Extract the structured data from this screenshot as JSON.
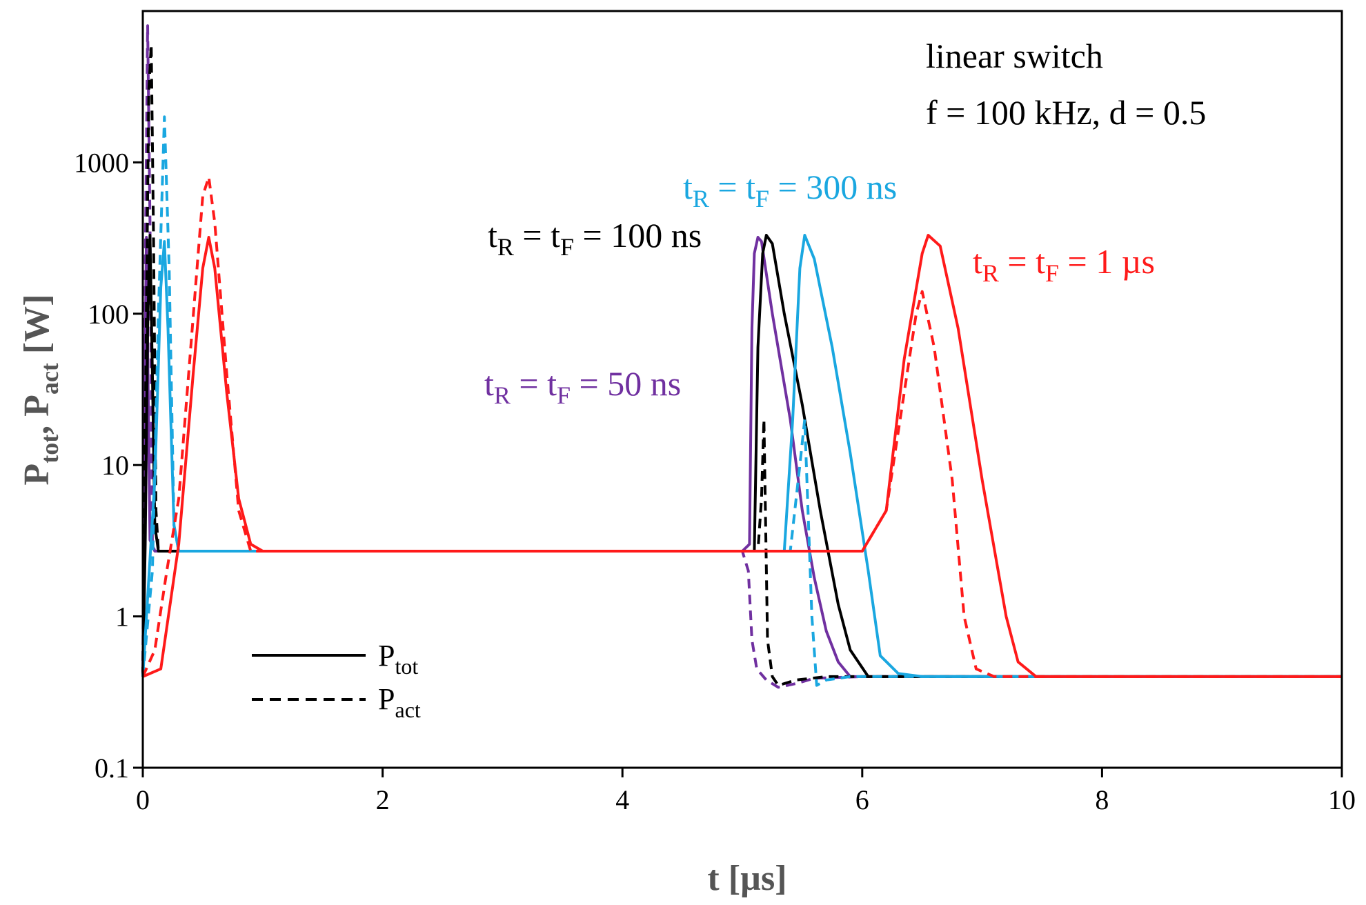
{
  "chart_data": {
    "type": "line",
    "xlabel": {
      "main": "t [µs]"
    },
    "ylabel": {
      "p1": "P",
      "p1_sub": "tot",
      "sep": ", ",
      "p2": "P",
      "p2_sub": "act",
      "unit": " [W]"
    },
    "xlim": [
      0,
      10
    ],
    "ylim": [
      0.1,
      10000
    ],
    "yscale": "log",
    "x_ticks": [
      "0",
      "2",
      "4",
      "6",
      "8",
      "10"
    ],
    "y_ticks": [
      "0.1",
      "1",
      "10",
      "100",
      "1000"
    ],
    "grid": false,
    "note": {
      "line1": "linear switch",
      "line2": "f = 100 kHz, d = 0.5"
    },
    "annotations": [
      {
        "t": "t",
        "s1": "R",
        "mid": " = t",
        "s2": "F",
        "rest": " = 300 ns",
        "color": "#1aa7e0"
      },
      {
        "t": "t",
        "s1": "R",
        "mid": " = t",
        "s2": "F",
        "rest": " = 100 ns",
        "color": "#000000"
      },
      {
        "t": "t",
        "s1": "R",
        "mid": " = t",
        "s2": "F",
        "rest": " = 1 µs",
        "color": "#ff1a1a"
      },
      {
        "t": "t",
        "s1": "R",
        "mid": " = t",
        "s2": "F",
        "rest": " = 50 ns",
        "color": "#7030a0"
      }
    ],
    "legend": {
      "position": "bottom-left",
      "entries": [
        {
          "main": "P",
          "sub": "tot",
          "dash": "solid"
        },
        {
          "main": "P",
          "sub": "act",
          "dash": "dashed"
        }
      ]
    },
    "series": [
      {
        "color": "#7030a0",
        "dash": "solid",
        "points": [
          [
            0,
            0.4
          ],
          [
            0.01,
            2
          ],
          [
            0.02,
            60
          ],
          [
            0.03,
            320
          ],
          [
            0.045,
            30
          ],
          [
            0.06,
            3.2
          ],
          [
            0.1,
            2.7
          ],
          [
            5.0,
            2.7
          ],
          [
            5.06,
            3
          ],
          [
            5.08,
            80
          ],
          [
            5.1,
            250
          ],
          [
            5.13,
            320
          ],
          [
            5.16,
            300
          ],
          [
            5.25,
            100
          ],
          [
            5.4,
            20
          ],
          [
            5.5,
            5
          ],
          [
            5.6,
            1.8
          ],
          [
            5.7,
            0.8
          ],
          [
            5.8,
            0.5
          ],
          [
            5.9,
            0.4
          ],
          [
            10,
            0.4
          ]
        ]
      },
      {
        "color": "#7030a0",
        "dash": "dashed",
        "points": [
          [
            0,
            0.4
          ],
          [
            0.02,
            200
          ],
          [
            0.04,
            8000
          ],
          [
            0.06,
            400
          ],
          [
            0.08,
            3
          ],
          [
            0.1,
            2.7
          ],
          [
            5.0,
            2.7
          ],
          [
            5.05,
            2
          ],
          [
            5.08,
            0.7
          ],
          [
            5.12,
            0.45
          ],
          [
            5.2,
            0.38
          ],
          [
            5.3,
            0.34
          ],
          [
            5.45,
            0.36
          ],
          [
            5.6,
            0.39
          ],
          [
            6.0,
            0.4
          ],
          [
            10,
            0.4
          ]
        ]
      },
      {
        "color": "#000000",
        "dash": "solid",
        "points": [
          [
            0,
            0.4
          ],
          [
            0.02,
            3
          ],
          [
            0.04,
            80
          ],
          [
            0.06,
            330
          ],
          [
            0.08,
            40
          ],
          [
            0.1,
            4
          ],
          [
            0.13,
            2.7
          ],
          [
            5.0,
            2.7
          ],
          [
            5.1,
            2.7
          ],
          [
            5.13,
            60
          ],
          [
            5.17,
            250
          ],
          [
            5.2,
            330
          ],
          [
            5.25,
            290
          ],
          [
            5.35,
            100
          ],
          [
            5.5,
            25
          ],
          [
            5.65,
            5
          ],
          [
            5.8,
            1.2
          ],
          [
            5.9,
            0.6
          ],
          [
            6.05,
            0.4
          ],
          [
            10,
            0.4
          ]
        ]
      },
      {
        "color": "#000000",
        "dash": "dashed",
        "points": [
          [
            0,
            0.4
          ],
          [
            0.03,
            100
          ],
          [
            0.05,
            3000
          ],
          [
            0.07,
            6000
          ],
          [
            0.09,
            300
          ],
          [
            0.11,
            5
          ],
          [
            0.13,
            2.7
          ],
          [
            5.0,
            2.7
          ],
          [
            5.13,
            2.7
          ],
          [
            5.16,
            6
          ],
          [
            5.18,
            20
          ],
          [
            5.21,
            0.7
          ],
          [
            5.25,
            0.4
          ],
          [
            5.3,
            0.35
          ],
          [
            5.45,
            0.38
          ],
          [
            5.7,
            0.4
          ],
          [
            10,
            0.4
          ]
        ]
      },
      {
        "color": "#1aa7e0",
        "dash": "solid",
        "points": [
          [
            0,
            0.4
          ],
          [
            0.1,
            8
          ],
          [
            0.15,
            150
          ],
          [
            0.18,
            300
          ],
          [
            0.21,
            80
          ],
          [
            0.26,
            4
          ],
          [
            0.3,
            2.7
          ],
          [
            5.0,
            2.7
          ],
          [
            5.35,
            2.7
          ],
          [
            5.42,
            20
          ],
          [
            5.48,
            200
          ],
          [
            5.52,
            330
          ],
          [
            5.6,
            230
          ],
          [
            5.75,
            60
          ],
          [
            5.9,
            12
          ],
          [
            6.05,
            2
          ],
          [
            6.15,
            0.55
          ],
          [
            6.3,
            0.42
          ],
          [
            6.5,
            0.4
          ],
          [
            10,
            0.4
          ]
        ]
      },
      {
        "color": "#1aa7e0",
        "dash": "dashed",
        "points": [
          [
            0,
            0.4
          ],
          [
            0.08,
            2
          ],
          [
            0.13,
            100
          ],
          [
            0.18,
            2000
          ],
          [
            0.22,
            200
          ],
          [
            0.26,
            4
          ],
          [
            0.3,
            2.7
          ],
          [
            5.0,
            2.7
          ],
          [
            5.4,
            2.7
          ],
          [
            5.48,
            10
          ],
          [
            5.52,
            20
          ],
          [
            5.58,
            1
          ],
          [
            5.62,
            0.35
          ],
          [
            5.7,
            0.38
          ],
          [
            5.9,
            0.4
          ],
          [
            10,
            0.4
          ]
        ]
      },
      {
        "color": "#ff1a1a",
        "dash": "solid",
        "points": [
          [
            0,
            0.4
          ],
          [
            0.15,
            0.45
          ],
          [
            0.3,
            3
          ],
          [
            0.42,
            40
          ],
          [
            0.5,
            200
          ],
          [
            0.55,
            320
          ],
          [
            0.6,
            200
          ],
          [
            0.7,
            30
          ],
          [
            0.8,
            6
          ],
          [
            0.9,
            3
          ],
          [
            1.0,
            2.7
          ],
          [
            6.0,
            2.7
          ],
          [
            6.2,
            5
          ],
          [
            6.35,
            50
          ],
          [
            6.5,
            250
          ],
          [
            6.55,
            330
          ],
          [
            6.65,
            280
          ],
          [
            6.8,
            80
          ],
          [
            7.0,
            8
          ],
          [
            7.2,
            1
          ],
          [
            7.3,
            0.5
          ],
          [
            7.45,
            0.4
          ],
          [
            10,
            0.4
          ]
        ]
      },
      {
        "color": "#ff1a1a",
        "dash": "dashed",
        "points": [
          [
            0,
            0.4
          ],
          [
            0.1,
            0.6
          ],
          [
            0.2,
            2
          ],
          [
            0.3,
            6
          ],
          [
            0.4,
            60
          ],
          [
            0.5,
            600
          ],
          [
            0.55,
            800
          ],
          [
            0.6,
            400
          ],
          [
            0.7,
            40
          ],
          [
            0.8,
            5
          ],
          [
            0.9,
            2.7
          ],
          [
            6.0,
            2.7
          ],
          [
            6.2,
            5
          ],
          [
            6.35,
            30
          ],
          [
            6.45,
            100
          ],
          [
            6.5,
            140
          ],
          [
            6.6,
            60
          ],
          [
            6.75,
            8
          ],
          [
            6.85,
            1
          ],
          [
            6.95,
            0.45
          ],
          [
            7.1,
            0.4
          ],
          [
            10,
            0.4
          ]
        ]
      }
    ]
  }
}
